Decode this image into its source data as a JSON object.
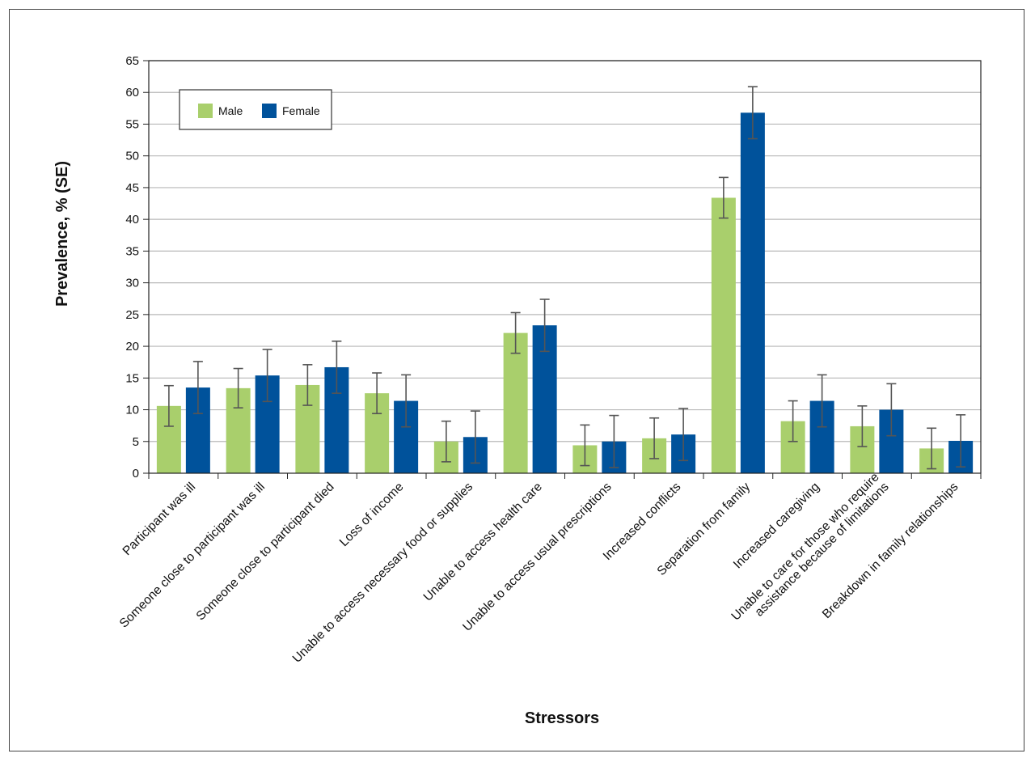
{
  "chart_data": {
    "type": "bar",
    "xlabel": "Stressors",
    "ylabel": "Prevalence, % (SE)",
    "ylim": [
      0,
      65
    ],
    "yticks": [
      0,
      5,
      10,
      15,
      20,
      25,
      30,
      35,
      40,
      45,
      50,
      55,
      60,
      65
    ],
    "grid": true,
    "legend_position": "top-left",
    "error_bars": true,
    "categories": [
      [
        "Participant was ill"
      ],
      [
        "Someone close to participant was ill"
      ],
      [
        "Someone close to participant died"
      ],
      [
        "Loss of income"
      ],
      [
        "Unable to access necessary food or supplies"
      ],
      [
        "Unable to access health care"
      ],
      [
        "Unable to access usual prescriptions"
      ],
      [
        "Increased conflicts"
      ],
      [
        "Separation from family"
      ],
      [
        "Increased caregiving"
      ],
      [
        "Unable to care for those who require",
        "assistance because of limitations"
      ],
      [
        "Breakdown in family relationships"
      ]
    ],
    "series": [
      {
        "name": "Male",
        "color": "#a9cf6c",
        "values": [
          10.6,
          13.4,
          13.9,
          12.6,
          5.0,
          22.1,
          4.4,
          5.5,
          43.4,
          8.2,
          7.4,
          3.9
        ],
        "se": [
          3.2,
          3.1,
          3.2,
          3.2,
          3.2,
          3.2,
          3.2,
          3.2,
          3.2,
          3.2,
          3.2,
          3.2
        ]
      },
      {
        "name": "Female",
        "color": "#00529b",
        "values": [
          13.5,
          15.4,
          16.7,
          11.4,
          5.7,
          23.3,
          5.0,
          6.1,
          56.8,
          11.4,
          10.0,
          5.1
        ],
        "se": [
          4.1,
          4.1,
          4.1,
          4.1,
          4.1,
          4.1,
          4.1,
          4.1,
          4.1,
          4.1,
          4.1,
          4.1
        ]
      }
    ]
  },
  "colors": {
    "grid": "#b8b8b8",
    "axis": "#222222",
    "error_bar": "#555555"
  }
}
